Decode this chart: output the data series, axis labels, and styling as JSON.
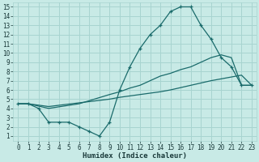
{
  "bg_color": "#c8eae6",
  "line_color": "#1a6b6b",
  "grid_color": "#a8d4d0",
  "xlabel": "Humidex (Indice chaleur)",
  "xlim": [
    -0.5,
    23.5
  ],
  "ylim": [
    0.5,
    15.5
  ],
  "xticks": [
    0,
    1,
    2,
    3,
    4,
    5,
    6,
    7,
    8,
    9,
    10,
    11,
    12,
    13,
    14,
    15,
    16,
    17,
    18,
    19,
    20,
    21,
    22,
    23
  ],
  "yticks": [
    1,
    2,
    3,
    4,
    5,
    6,
    7,
    8,
    9,
    10,
    11,
    12,
    13,
    14,
    15
  ],
  "line1_x": [
    0,
    1,
    2,
    3,
    4,
    5,
    6,
    7,
    8,
    9,
    10,
    11,
    12,
    13,
    14,
    15,
    16,
    17,
    18,
    19,
    20,
    21,
    22,
    23
  ],
  "line1_y": [
    4.5,
    4.5,
    4.0,
    2.5,
    2.5,
    2.5,
    2.0,
    1.5,
    1.0,
    2.5,
    6.0,
    8.5,
    10.5,
    12.0,
    13.0,
    14.5,
    15.0,
    15.0,
    13.0,
    11.5,
    9.5,
    8.5,
    6.5,
    6.5
  ],
  "line2_x": [
    0,
    1,
    3,
    6,
    9,
    10,
    11,
    12,
    13,
    14,
    15,
    16,
    17,
    18,
    19,
    20,
    21,
    22,
    23
  ],
  "line2_y": [
    4.5,
    4.5,
    4.0,
    4.5,
    5.5,
    5.8,
    6.2,
    6.5,
    7.0,
    7.5,
    7.8,
    8.2,
    8.5,
    9.0,
    9.5,
    9.8,
    9.5,
    6.5,
    6.5
  ],
  "line3_x": [
    0,
    1,
    3,
    9,
    10,
    14,
    15,
    17,
    19,
    20,
    21,
    22,
    23
  ],
  "line3_y": [
    4.5,
    4.5,
    4.2,
    5.0,
    5.2,
    5.8,
    6.0,
    6.5,
    7.0,
    7.2,
    7.4,
    7.6,
    6.5
  ]
}
